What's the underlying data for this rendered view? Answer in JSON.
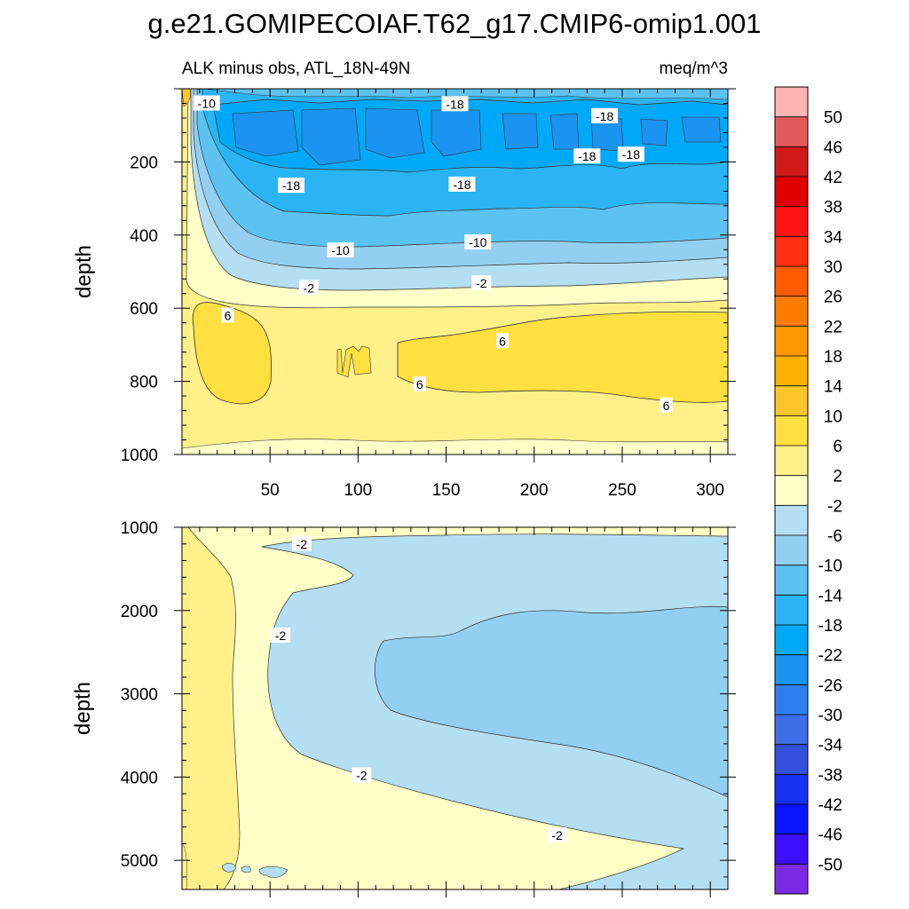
{
  "figure": {
    "title": "g.e21.GOMIPECOIAF.T62_g17.CMIP6-omip1.001",
    "subtitle_left": "ALK minus obs, ATL_18N-49N",
    "subtitle_right": "meq/m^3"
  },
  "chart_data": [
    {
      "type": "contour",
      "panel": "upper",
      "ylabel": "depth",
      "xlabel": "",
      "xlim": [
        0,
        310
      ],
      "ylim": [
        1000,
        0
      ],
      "xticks": [
        50,
        100,
        150,
        200,
        250,
        300
      ],
      "yticks": [
        200,
        400,
        600,
        800,
        1000
      ],
      "contour_labels": [
        {
          "text": "-10",
          "x": 14,
          "y": 40
        },
        {
          "text": "-18",
          "x": 155,
          "y": 42
        },
        {
          "text": "-18",
          "x": 240,
          "y": 75
        },
        {
          "text": "-18",
          "x": 230,
          "y": 185
        },
        {
          "text": "-18",
          "x": 255,
          "y": 180
        },
        {
          "text": "-18",
          "x": 62,
          "y": 265
        },
        {
          "text": "-18",
          "x": 159,
          "y": 262
        },
        {
          "text": "-10",
          "x": 90,
          "y": 442
        },
        {
          "text": "-10",
          "x": 168,
          "y": 420
        },
        {
          "text": "-2",
          "x": 72,
          "y": 545
        },
        {
          "text": "-2",
          "x": 170,
          "y": 532
        },
        {
          "text": "6",
          "x": 26,
          "y": 620
        },
        {
          "text": "6",
          "x": 182,
          "y": 690
        },
        {
          "text": "6",
          "x": 135,
          "y": 808
        },
        {
          "text": "6",
          "x": 275,
          "y": 866
        }
      ]
    },
    {
      "type": "contour",
      "panel": "lower",
      "ylabel": "depth",
      "xlabel": "",
      "xlim": [
        0,
        310
      ],
      "ylim": [
        5350,
        1000
      ],
      "yticks": [
        1000,
        2000,
        3000,
        4000,
        5000
      ],
      "contour_labels": [
        {
          "text": "-2",
          "x": 68,
          "y": 1200
        },
        {
          "text": "-2",
          "x": 56,
          "y": 2300
        },
        {
          "text": "-2",
          "x": 102,
          "y": 3980
        },
        {
          "text": "-2",
          "x": 213,
          "y": 4700
        }
      ]
    }
  ],
  "colorbar": {
    "labels": [
      "50",
      "46",
      "42",
      "38",
      "34",
      "30",
      "26",
      "22",
      "18",
      "14",
      "10",
      "6",
      "2",
      "-2",
      "-6",
      "-10",
      "-14",
      "-18",
      "-22",
      "-26",
      "-30",
      "-34",
      "-38",
      "-42",
      "-46",
      "-50"
    ],
    "colors": [
      "#ffb3b3",
      "#e35a5a",
      "#d01a1a",
      "#e00000",
      "#ff1414",
      "#ff3010",
      "#ff5a00",
      "#ff7c00",
      "#ff9800",
      "#ffb000",
      "#fcc52a",
      "#ffe040",
      "#fff08a",
      "#ffffc8",
      "#b4def2",
      "#92cff0",
      "#5cc2f2",
      "#2ab4f5",
      "#00a9f8",
      "#1b93f0",
      "#2e7ef0",
      "#3c6ee8",
      "#3450dd",
      "#1830f0",
      "#0a14ff",
      "#3c10ff",
      "#7d2ae6"
    ]
  }
}
